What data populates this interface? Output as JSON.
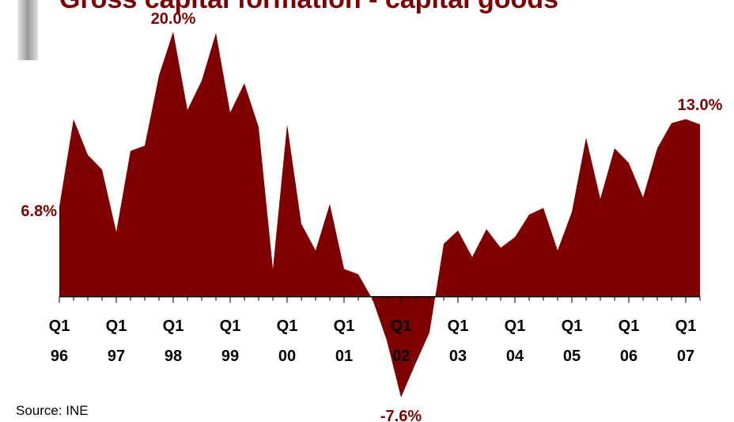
{
  "chart_data": {
    "type": "area",
    "title": "Gross capital formation - capital goods",
    "source": "Source: INE",
    "color": "#7f0000",
    "categories": [
      [
        "Q1",
        "96"
      ],
      null,
      null,
      null,
      [
        "Q1",
        "97"
      ],
      null,
      null,
      null,
      [
        "Q1",
        "98"
      ],
      null,
      null,
      null,
      [
        "Q1",
        "99"
      ],
      null,
      null,
      null,
      [
        "Q1",
        "00"
      ],
      null,
      null,
      null,
      [
        "Q1",
        "01"
      ],
      null,
      null,
      null,
      [
        "Q1",
        "02"
      ],
      null,
      null,
      null,
      [
        "Q1",
        "03"
      ],
      null,
      null,
      null,
      [
        "Q1",
        "04"
      ],
      null,
      null,
      null,
      [
        "Q1",
        "05"
      ],
      null,
      null,
      null,
      [
        "Q1",
        "06"
      ],
      null,
      null,
      null,
      [
        "Q1",
        "07"
      ],
      null
    ],
    "values": [
      6.8,
      13.4,
      10.7,
      9.6,
      4.9,
      11.0,
      11.4,
      16.7,
      20.0,
      14.1,
      16.3,
      19.9,
      13.9,
      16.1,
      12.8,
      2.1,
      13.0,
      5.5,
      3.5,
      7.0,
      2.1,
      1.7,
      -0.2,
      -3.3,
      -7.6,
      -5.1,
      -2.7,
      4.0,
      5.0,
      3.0,
      5.1,
      3.7,
      4.5,
      6.2,
      6.7,
      3.5,
      6.4,
      12.0,
      7.4,
      11.2,
      10.1,
      7.5,
      11.2,
      13.1,
      13.4,
      13.0
    ],
    "value_labels": [
      "6.8%",
      null,
      null,
      null,
      null,
      null,
      null,
      null,
      "20.0%",
      null,
      null,
      null,
      null,
      null,
      null,
      null,
      null,
      null,
      null,
      null,
      null,
      null,
      null,
      null,
      "-7.6%",
      null,
      null,
      null,
      null,
      null,
      null,
      null,
      null,
      null,
      null,
      null,
      null,
      null,
      null,
      null,
      null,
      null,
      null,
      null,
      null,
      "13.0%"
    ]
  }
}
